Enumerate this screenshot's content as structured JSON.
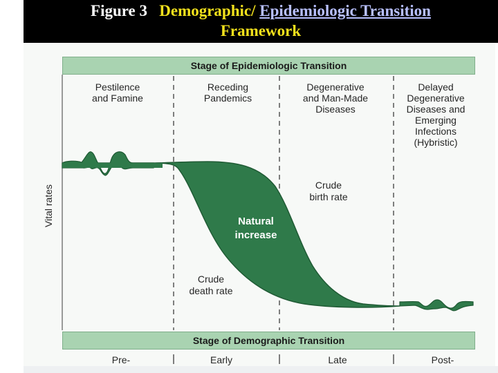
{
  "slide_title": {
    "figure_label": "Figure 3",
    "part_demographic": "Demographic/",
    "part_epidemiologic": "Epidemiologic Transition",
    "part_framework": "Framework",
    "colors": {
      "figure_label": "#ffffff",
      "accent_yellow": "#f2e11c",
      "link_blue": "#b8c0ff"
    }
  },
  "diagram": {
    "epidemiologic_header": "Stage of Epidemiologic Transition",
    "epidemiologic_stages": [
      "Pestilence\nand Famine",
      "Receding\nPandemics",
      "Degenerative\nand Man-Made\nDiseases",
      "Delayed\nDegenerative\nDiseases and\nEmerging\nInfections\n(Hybristic)"
    ],
    "demographic_header": "Stage of Demographic Transition",
    "demographic_stages": [
      "Pre-",
      "Early",
      "Late",
      "Post-"
    ],
    "y_axis_label": "Vital rates",
    "curves": {
      "birth_rate_label": "Crude\nbirth rate",
      "death_rate_label": "Crude\ndeath rate",
      "natural_increase_label": "Natural\nincrease"
    },
    "colors": {
      "fill": "#2f7a4a",
      "stage_bar": "#a9d3b1",
      "line": "#1f5a34"
    }
  }
}
